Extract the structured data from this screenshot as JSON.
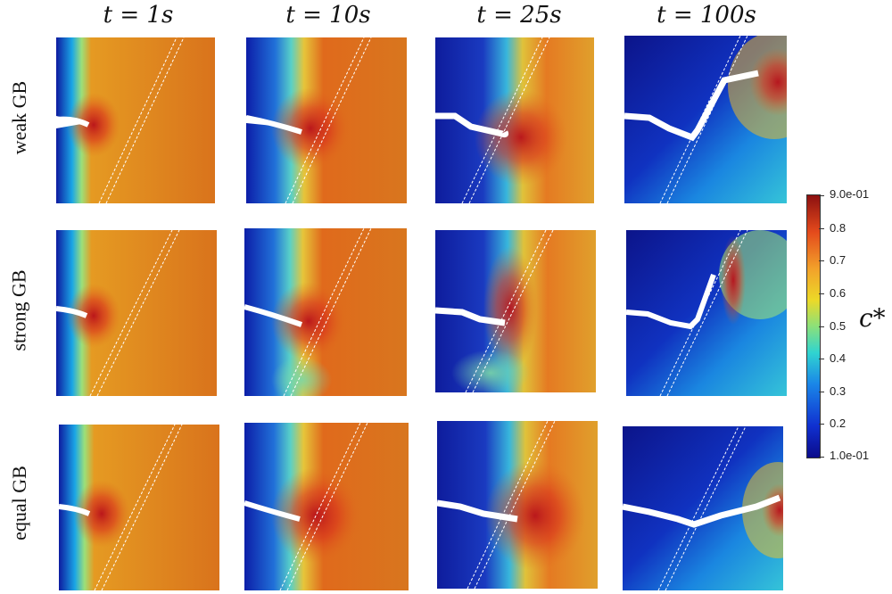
{
  "column_titles": [
    "t = 1s",
    "t = 10s",
    "t = 25s",
    "t = 100s"
  ],
  "row_labels": [
    "weak GB",
    "strong GB",
    "equal GB"
  ],
  "colorbar": {
    "title": "c*",
    "max_label": "9.0e-01",
    "min_label": "1.0e-01",
    "ticks": [
      "0.8",
      "0.7",
      "0.6",
      "0.5",
      "0.4",
      "0.3",
      "0.2"
    ],
    "colors": [
      "#0b0b8a",
      "#1a86e8",
      "#30d4d0",
      "#ecd928",
      "#e67a1e",
      "#8c1010"
    ]
  }
}
